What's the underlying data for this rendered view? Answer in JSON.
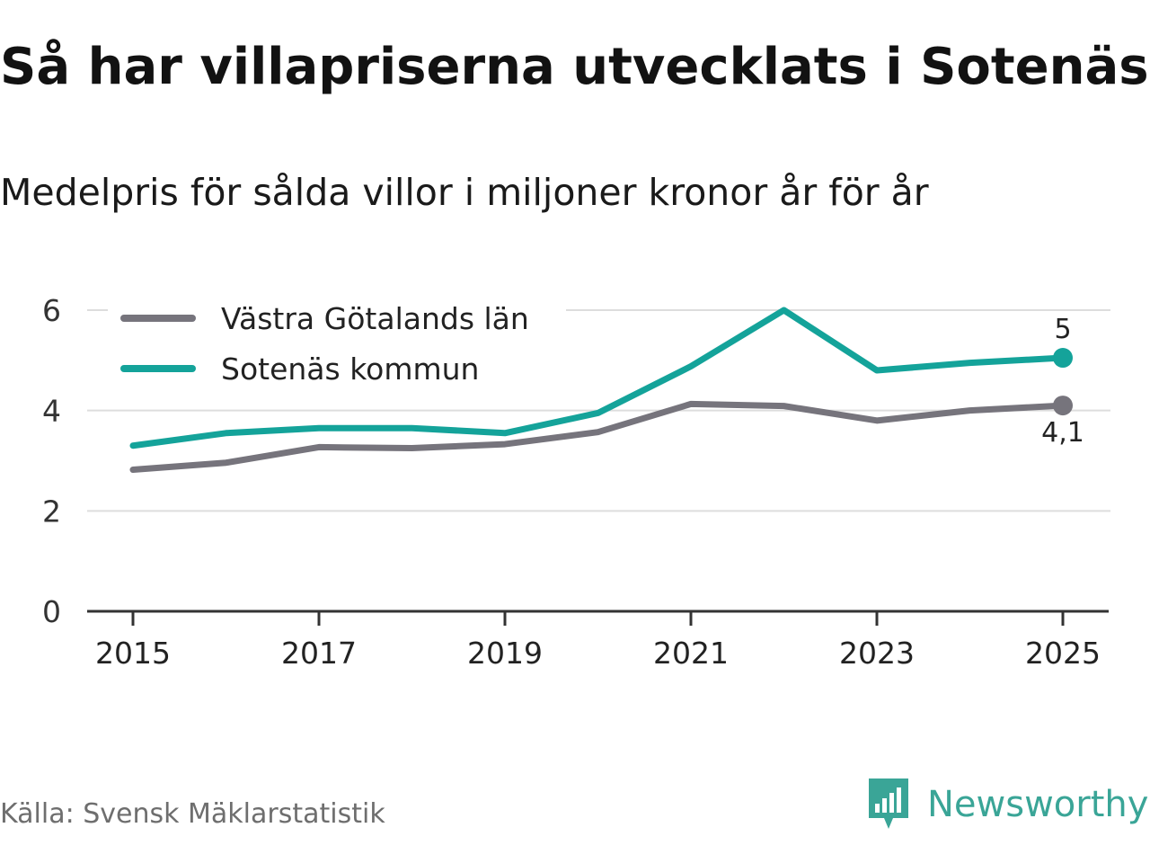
{
  "title": "Så har villapriserna utvecklats i Sotenäs",
  "subtitle": "Medelpris för sålda villor i miljoner kronor år för år",
  "source": "Källa: Svensk Mäklarstatistik",
  "brand": "Newsworthy",
  "colors": {
    "region": "#76747c",
    "municipality": "#14a39a",
    "grid": "#dddddd",
    "axis": "#333333",
    "brand": "#3aa597"
  },
  "chart_data": {
    "type": "line",
    "x": [
      2015,
      2016,
      2017,
      2018,
      2019,
      2020,
      2021,
      2022,
      2023,
      2024,
      2025
    ],
    "series": [
      {
        "name": "Västra Götalands län",
        "key": "region",
        "values": [
          2.82,
          2.96,
          3.27,
          3.25,
          3.33,
          3.57,
          4.13,
          4.09,
          3.8,
          4.0,
          4.1
        ],
        "end_label": "4,1"
      },
      {
        "name": "Sotenäs kommun",
        "key": "municipality",
        "values": [
          3.3,
          3.55,
          3.65,
          3.65,
          3.55,
          3.95,
          4.88,
          6.0,
          4.8,
          4.95,
          5.05
        ],
        "end_label": "5"
      }
    ],
    "xticks": [
      "2015",
      "2017",
      "2019",
      "2021",
      "2023",
      "2025"
    ],
    "yticks": [
      "0",
      "2",
      "4",
      "6"
    ],
    "ylim": [
      0,
      6
    ],
    "xlim": [
      2015,
      2025
    ],
    "legend": "top-left",
    "grid": true,
    "xlabel": "",
    "ylabel": ""
  }
}
